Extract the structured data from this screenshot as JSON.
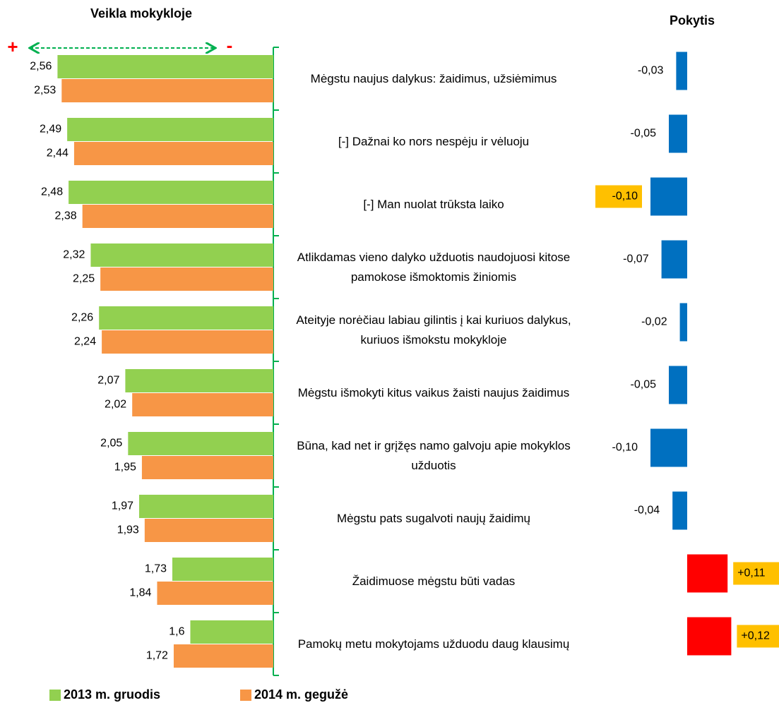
{
  "chart_data": [
    {
      "type": "bar",
      "orientation": "horizontal",
      "x_reversed": true,
      "title": "Veikla mokykloje",
      "annotations": [
        "+",
        "-"
      ],
      "categories": [
        "Mėgstu naujus dalykus: žaidimus, užsiėmimus",
        "[-] Dažnai ko nors nespėju ir vėluoju",
        "[-] Man nuolat trūksta laiko",
        "Atlikdamas vieno dalyko užduotis naudojuosi kitose pamokose išmoktomis žiniomis",
        "Ateityje norėčiau labiau gilintis į kai kuriuos dalykus, kuriuos išmokstu mokykloje",
        "Mėgstu išmokyti kitus vaikus žaisti naujus žaidimus",
        "Būna, kad net ir grįžęs namo galvoju apie mokyklos užduotis",
        "Mėgstu pats sugalvoti naujų žaidimų",
        "Žaidimuose mėgstu būti vadas",
        "Pamokų metu mokytojams užduodu daug klausimų"
      ],
      "series": [
        {
          "name": "2013 m. gruodis",
          "color": "#92d050",
          "values": [
            2.56,
            2.49,
            2.48,
            2.32,
            2.26,
            2.07,
            2.05,
            1.97,
            1.73,
            1.6
          ],
          "value_labels": [
            "2,56",
            "2,49",
            "2,48",
            "2,32",
            "2,26",
            "2,07",
            "2,05",
            "1,97",
            "1,73",
            "1,6"
          ]
        },
        {
          "name": "2014 m. gegužė",
          "color": "#f79646",
          "values": [
            2.53,
            2.44,
            2.38,
            2.25,
            2.24,
            2.02,
            1.95,
            1.93,
            1.84,
            1.72
          ],
          "value_labels": [
            "2,53",
            "2,44",
            "2,38",
            "2,25",
            "2,24",
            "2,02",
            "1,95",
            "1,93",
            "1,84",
            "1,72"
          ]
        }
      ],
      "xlim": [
        1,
        2.7
      ],
      "grid": false,
      "legend": "bottom"
    },
    {
      "type": "diverging",
      "title": "Pokytis",
      "values": [
        -0.03,
        -0.05,
        -0.1,
        -0.07,
        -0.02,
        -0.05,
        -0.1,
        -0.04,
        0.11,
        0.12
      ],
      "value_labels": [
        "-0,03",
        "-0,05",
        "-0,10",
        "-0,07",
        "-0,02",
        "-0,05",
        "-0,10",
        "-0,04",
        "+0,11",
        "+0,12"
      ],
      "negative_color": "#0070c0",
      "positive_color": "#ff0000",
      "highlight": [
        2,
        8,
        9
      ],
      "highlight_color": "#ffc000",
      "xlim": [
        -0.2,
        0.2
      ]
    }
  ]
}
